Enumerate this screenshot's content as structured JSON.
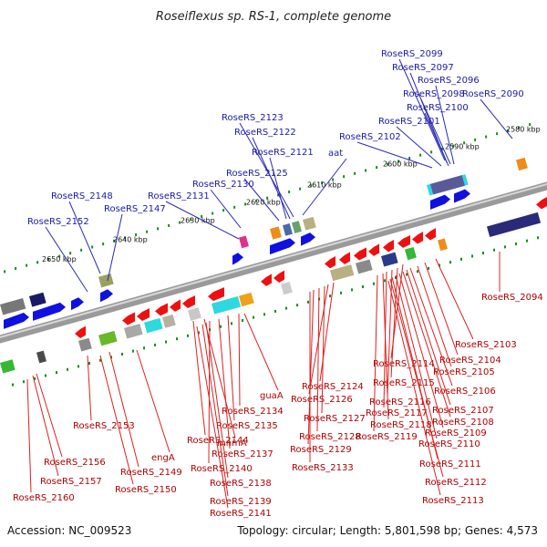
{
  "title": "Roseiflexus sp. RS-1, complete genome",
  "footer": {
    "accession": "Accession: NC_009523",
    "summary": "Topology: circular; Length: 5,801,598 bp; Genes: 4,573"
  },
  "ticks": [
    "2580 kbp",
    "2590 kbp",
    "2600 kbp",
    "2610 kbp",
    "2620 kbp",
    "2630 kbp",
    "2640 kbp",
    "2650 kbp"
  ],
  "top_labels": [
    "RoseRS_2099",
    "RoseRS_2097",
    "RoseRS_2096",
    "RoseRS_2098",
    "RoseRS_2090",
    "RoseRS_2100",
    "RoseRS_2123",
    "RoseRS_2101",
    "RoseRS_2122",
    "RoseRS_2102",
    "RoseRS_2121",
    "aat",
    "RoseRS_2125",
    "RoseRS_2130",
    "RoseRS_2148",
    "RoseRS_2131",
    "RoseRS_2147",
    "RoseRS_2152"
  ],
  "bottom_labels": [
    "RoseRS_2094",
    "RoseRS_2103",
    "RoseRS_2104",
    "RoseRS_2114",
    "RoseRS_2105",
    "RoseRS_2115",
    "RoseRS_2106",
    "RoseRS_2124",
    "RoseRS_2126",
    "RoseRS_2116",
    "RoseRS_2107",
    "guaA",
    "RoseRS_2134",
    "RoseRS_2117",
    "RoseRS_2108",
    "RoseRS_2127",
    "RoseRS_2118",
    "RoseRS_2135",
    "RoseRS_2153",
    "RoseRS_2109",
    "RoseRS_2128",
    "RoseRS_2119",
    "RoseRS_2144",
    "mnmA",
    "RoseRS_2110",
    "RoseRS_2129",
    "RoseRS_2137",
    "engA",
    "RoseRS_2156",
    "RoseRS_2133",
    "RoseRS_2140",
    "RoseRS_2149",
    "RoseRS_2111",
    "RoseRS_2157",
    "RoseRS_2138",
    "RoseRS_2112",
    "RoseRS_2150",
    "RoseRS_2113",
    "RoseRS_2160",
    "RoseRS_2139",
    "RoseRS_2141"
  ],
  "colors": {
    "backbone": "#808080",
    "forward_gene": "#1010e0",
    "reverse_gene": "#ee1010",
    "top_leader": "#2a2ab8",
    "bottom_leader": "#dd2020",
    "tick_mark": "#1a8a1a"
  }
}
